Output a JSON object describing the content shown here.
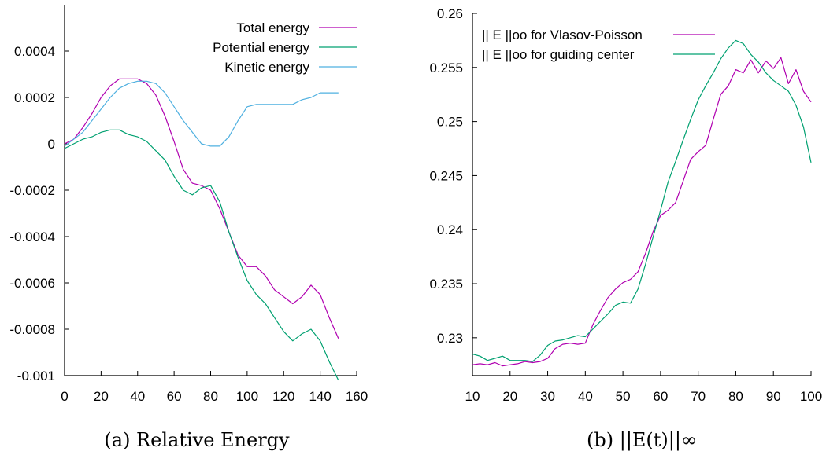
{
  "chart_data": [
    {
      "type": "line",
      "caption": "(a) Relative Energy",
      "xlim": [
        0,
        160
      ],
      "ylim": [
        -0.001,
        0.0006
      ],
      "xticks": [
        "0",
        "20",
        "40",
        "60",
        "80",
        "100",
        "120",
        "140",
        "160"
      ],
      "yticks": [
        "0.0004",
        "0.0002",
        "0",
        "-0.0002",
        "-0.0004",
        "-0.0006",
        "-0.0008",
        "-0.001"
      ],
      "legend_position": "top-right",
      "grid": false,
      "series": [
        {
          "name": "Total energy",
          "color": "#b000b0",
          "x": [
            0,
            5,
            10,
            15,
            20,
            25,
            30,
            35,
            40,
            45,
            50,
            55,
            60,
            65,
            70,
            75,
            80,
            85,
            90,
            95,
            100,
            105,
            110,
            115,
            120,
            125,
            130,
            135,
            140,
            145,
            150
          ],
          "y": [
            0.0,
            2e-05,
            7e-05,
            0.00013,
            0.0002,
            0.00025,
            0.00028,
            0.00028,
            0.00028,
            0.00026,
            0.00021,
            0.00012,
            1e-05,
            -0.00011,
            -0.00017,
            -0.00018,
            -0.0002,
            -0.00028,
            -0.00038,
            -0.00048,
            -0.00053,
            -0.00053,
            -0.00057,
            -0.00063,
            -0.00066,
            -0.00069,
            -0.00066,
            -0.00061,
            -0.00065,
            -0.00075,
            -0.00084
          ]
        },
        {
          "name": "Potential energy",
          "color": "#00a070",
          "x": [
            0,
            5,
            10,
            15,
            20,
            25,
            30,
            35,
            40,
            45,
            50,
            55,
            60,
            65,
            70,
            75,
            80,
            85,
            90,
            95,
            100,
            105,
            110,
            115,
            120,
            125,
            130,
            135,
            140,
            145,
            150
          ],
          "y": [
            -2e-05,
            0.0,
            2e-05,
            3e-05,
            5e-05,
            6e-05,
            6e-05,
            4e-05,
            3e-05,
            1e-05,
            -3e-05,
            -7e-05,
            -0.00014,
            -0.0002,
            -0.00022,
            -0.00019,
            -0.00018,
            -0.00025,
            -0.00038,
            -0.00049,
            -0.00059,
            -0.00065,
            -0.00069,
            -0.00075,
            -0.00081,
            -0.00085,
            -0.00082,
            -0.0008,
            -0.00085,
            -0.00094,
            -0.00102
          ]
        },
        {
          "name": "Kinetic energy",
          "color": "#4fb0e0",
          "x": [
            0,
            5,
            10,
            15,
            20,
            25,
            30,
            35,
            40,
            45,
            50,
            55,
            60,
            65,
            70,
            75,
            80,
            85,
            90,
            95,
            100,
            105,
            110,
            115,
            120,
            125,
            130,
            135,
            140,
            145,
            150
          ],
          "y": [
            -1e-05,
            2e-05,
            5e-05,
            0.0001,
            0.00015,
            0.0002,
            0.00024,
            0.00026,
            0.00027,
            0.00027,
            0.00026,
            0.00022,
            0.00016,
            0.0001,
            5e-05,
            0.0,
            -1e-05,
            -1e-05,
            3e-05,
            0.0001,
            0.00016,
            0.00017,
            0.00017,
            0.00017,
            0.00017,
            0.00017,
            0.00019,
            0.0002,
            0.00022,
            0.00022,
            0.00022
          ]
        }
      ]
    },
    {
      "type": "line",
      "caption": "(b) ||E(t)||∞",
      "xlim": [
        10,
        100
      ],
      "ylim": [
        0.2265,
        0.26
      ],
      "xticks": [
        "10",
        "20",
        "30",
        "40",
        "50",
        "60",
        "70",
        "80",
        "90",
        "100"
      ],
      "yticks": [
        "0.26",
        "0.255",
        "0.25",
        "0.245",
        "0.24",
        "0.235",
        "0.23"
      ],
      "legend_position": "top-left",
      "grid": false,
      "series": [
        {
          "name": "|| E ||oo  for Vlasov-Poisson",
          "color": "#b000b0",
          "x": [
            10,
            12,
            14,
            16,
            18,
            20,
            22,
            24,
            26,
            28,
            30,
            32,
            34,
            36,
            38,
            40,
            42,
            44,
            46,
            48,
            50,
            52,
            54,
            56,
            58,
            60,
            62,
            64,
            66,
            68,
            70,
            72,
            74,
            76,
            78,
            80,
            82,
            84,
            86,
            88,
            90,
            92,
            94,
            96,
            98,
            100
          ],
          "y": [
            0.2275,
            0.2276,
            0.2275,
            0.2277,
            0.2274,
            0.2275,
            0.2276,
            0.2278,
            0.2277,
            0.2278,
            0.2281,
            0.229,
            0.2294,
            0.2295,
            0.2294,
            0.2295,
            0.2312,
            0.2325,
            0.2337,
            0.2345,
            0.2351,
            0.2354,
            0.2361,
            0.2378,
            0.2398,
            0.2413,
            0.2418,
            0.2425,
            0.2445,
            0.2465,
            0.2472,
            0.2478,
            0.2502,
            0.2525,
            0.2533,
            0.2548,
            0.2545,
            0.2557,
            0.2545,
            0.2556,
            0.2549,
            0.2559,
            0.2535,
            0.2548,
            0.2528,
            0.2518
          ]
        },
        {
          "name": "|| E ||oo   for guiding center",
          "color": "#00a070",
          "x": [
            10,
            12,
            14,
            16,
            18,
            20,
            22,
            24,
            26,
            28,
            30,
            32,
            34,
            36,
            38,
            40,
            42,
            44,
            46,
            48,
            50,
            52,
            54,
            56,
            58,
            60,
            62,
            64,
            66,
            68,
            70,
            72,
            74,
            76,
            78,
            80,
            82,
            84,
            86,
            88,
            90,
            92,
            94,
            96,
            98,
            100
          ],
          "y": [
            0.2285,
            0.2283,
            0.2279,
            0.2281,
            0.2283,
            0.2279,
            0.2279,
            0.2279,
            0.2278,
            0.2284,
            0.2293,
            0.2297,
            0.2298,
            0.23,
            0.2302,
            0.2301,
            0.2308,
            0.2315,
            0.2322,
            0.233,
            0.2333,
            0.2332,
            0.2345,
            0.2368,
            0.2393,
            0.2418,
            0.2444,
            0.2463,
            0.2483,
            0.2502,
            0.252,
            0.2533,
            0.2545,
            0.2558,
            0.2568,
            0.2575,
            0.2572,
            0.2562,
            0.2555,
            0.2545,
            0.2538,
            0.2533,
            0.2528,
            0.2515,
            0.2495,
            0.2462
          ]
        }
      ]
    }
  ]
}
